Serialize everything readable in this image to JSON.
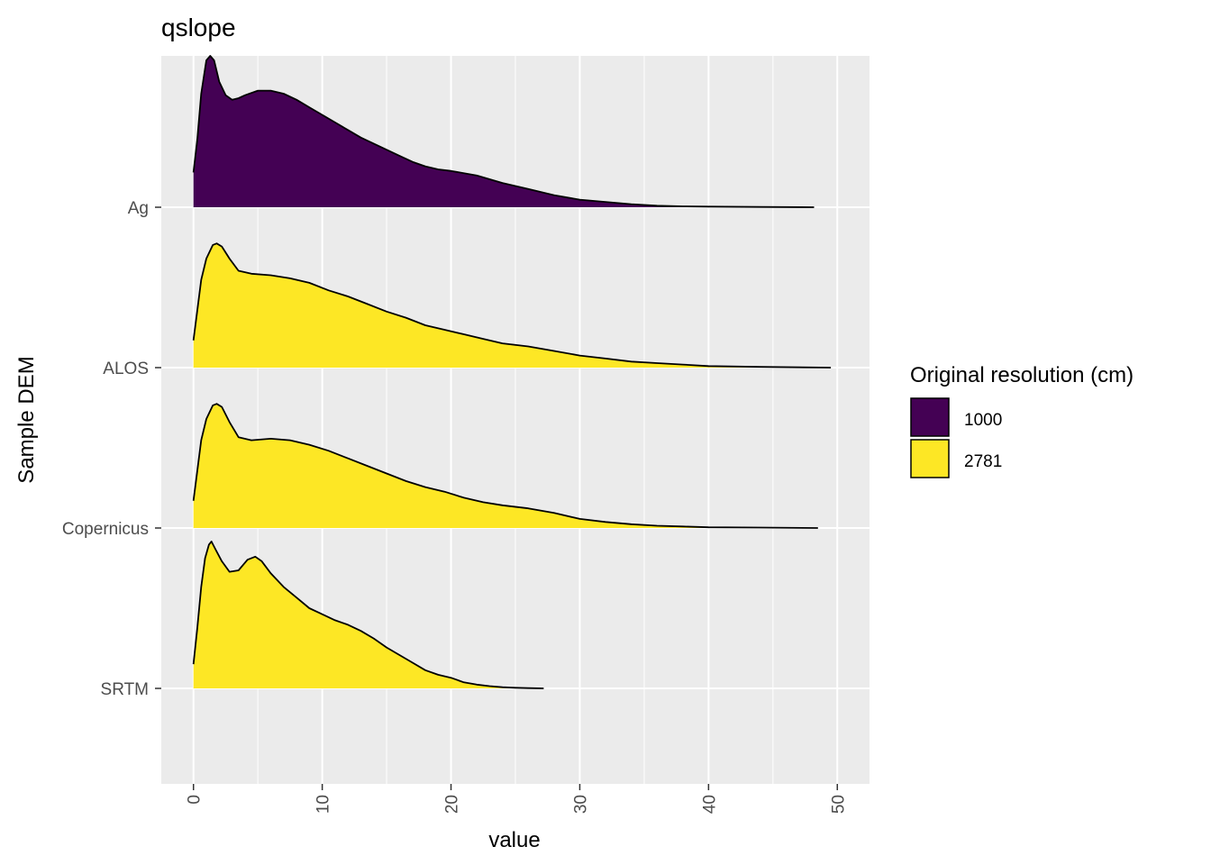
{
  "chart_data": {
    "type": "area",
    "title": "qslope",
    "xlabel": "value",
    "ylabel": "Sample DEM",
    "xlim": [
      -2.5,
      52.5
    ],
    "x_ticks": [
      "0",
      "10",
      "20",
      "30",
      "40",
      "50"
    ],
    "x_tick_values": [
      0,
      10,
      20,
      30,
      40,
      50
    ],
    "categories": [
      "Ag",
      "ALOS",
      "Copernicus",
      "SRTM"
    ],
    "grid": true,
    "legend": {
      "title": "Original resolution (cm)",
      "placement": "right",
      "entries": [
        {
          "label": "1000",
          "color": "#440154"
        },
        {
          "label": "2781",
          "color": "#FDE725"
        }
      ]
    },
    "series": [
      {
        "category": "Ag",
        "resolution": "1000",
        "color": "#440154",
        "x": [
          0,
          0.3,
          0.6,
          1.0,
          1.3,
          1.6,
          2.0,
          2.5,
          3.0,
          3.5,
          4.0,
          5.0,
          6.0,
          7.0,
          8.0,
          9.0,
          10.0,
          11.0,
          12.0,
          13.0,
          14.0,
          15.0,
          16.0,
          17.0,
          18.0,
          19.0,
          20.0,
          22.0,
          24.0,
          26.0,
          28.0,
          30.0,
          32.0,
          34.0,
          36.0,
          38.0,
          40.0,
          44.0,
          48.2
        ],
        "y": [
          0.23,
          0.45,
          0.75,
          0.97,
          1.0,
          0.97,
          0.83,
          0.74,
          0.71,
          0.72,
          0.74,
          0.77,
          0.77,
          0.75,
          0.71,
          0.66,
          0.61,
          0.56,
          0.51,
          0.46,
          0.42,
          0.38,
          0.34,
          0.3,
          0.27,
          0.25,
          0.24,
          0.21,
          0.16,
          0.12,
          0.08,
          0.05,
          0.035,
          0.02,
          0.01,
          0.006,
          0.004,
          0.002,
          0.0
        ]
      },
      {
        "category": "ALOS",
        "resolution": "2781",
        "color": "#FDE725",
        "x": [
          0,
          0.3,
          0.6,
          1.0,
          1.5,
          1.8,
          2.2,
          2.8,
          3.5,
          4.5,
          6.0,
          7.5,
          9.0,
          10.5,
          12.0,
          13.5,
          15.0,
          16.5,
          18.0,
          19.5,
          21.0,
          22.5,
          24.0,
          26.0,
          28.0,
          30.0,
          32.0,
          34.0,
          36.0,
          38.0,
          40.0,
          44.0,
          49.5
        ],
        "y": [
          0.18,
          0.38,
          0.58,
          0.72,
          0.81,
          0.82,
          0.8,
          0.72,
          0.64,
          0.62,
          0.61,
          0.59,
          0.56,
          0.51,
          0.47,
          0.42,
          0.37,
          0.33,
          0.28,
          0.25,
          0.22,
          0.19,
          0.16,
          0.14,
          0.11,
          0.08,
          0.06,
          0.04,
          0.03,
          0.02,
          0.01,
          0.005,
          0.0
        ]
      },
      {
        "category": "Copernicus",
        "resolution": "2781",
        "color": "#FDE725",
        "x": [
          0,
          0.3,
          0.6,
          1.0,
          1.5,
          1.8,
          2.2,
          2.8,
          3.5,
          4.5,
          6.0,
          7.5,
          9.0,
          10.5,
          12.0,
          13.5,
          15.0,
          16.5,
          18.0,
          19.5,
          21.0,
          22.5,
          24.0,
          26.0,
          28.0,
          30.0,
          32.0,
          34.0,
          36.0,
          38.0,
          40.0,
          44.0,
          48.5
        ],
        "y": [
          0.18,
          0.38,
          0.58,
          0.72,
          0.81,
          0.82,
          0.8,
          0.7,
          0.6,
          0.58,
          0.59,
          0.58,
          0.55,
          0.51,
          0.46,
          0.41,
          0.36,
          0.31,
          0.27,
          0.24,
          0.2,
          0.17,
          0.15,
          0.13,
          0.1,
          0.06,
          0.04,
          0.025,
          0.015,
          0.01,
          0.005,
          0.003,
          0.0
        ]
      },
      {
        "category": "SRTM",
        "resolution": "2781",
        "color": "#FDE725",
        "x": [
          0,
          0.3,
          0.6,
          0.9,
          1.2,
          1.4,
          1.7,
          2.2,
          2.8,
          3.5,
          4.2,
          4.8,
          5.3,
          6.0,
          7.0,
          8.0,
          9.0,
          10.0,
          11.0,
          12.0,
          13.0,
          14.0,
          15.0,
          16.0,
          17.0,
          18.0,
          19.0,
          20.0,
          21.0,
          22.0,
          23.0,
          24.0,
          25.0,
          26.0,
          27.2
        ],
        "y": [
          0.16,
          0.4,
          0.67,
          0.86,
          0.95,
          0.97,
          0.92,
          0.84,
          0.77,
          0.78,
          0.85,
          0.87,
          0.84,
          0.76,
          0.67,
          0.6,
          0.53,
          0.49,
          0.45,
          0.42,
          0.38,
          0.33,
          0.27,
          0.22,
          0.17,
          0.12,
          0.09,
          0.07,
          0.04,
          0.025,
          0.015,
          0.008,
          0.004,
          0.002,
          0.0
        ]
      }
    ]
  }
}
